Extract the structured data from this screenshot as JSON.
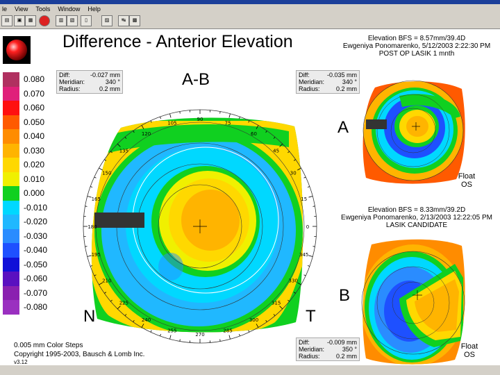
{
  "menu": {
    "items": [
      "le",
      "View",
      "Tools",
      "Window",
      "Help"
    ]
  },
  "header": {
    "title": "Difference - Anterior Elevation",
    "exam_a": [
      "Elevation BFS = 8.57mm/39.4D",
      "Ewgeniya Ponomarenko, 5/12/2003 2:22:30 PM",
      "POST OP LASIK 1 mnth"
    ],
    "exam_b": [
      "Elevation BFS = 8.33mm/39.2D",
      "Ewgeniya Ponomarenko, 2/13/2003 12:22:05 PM",
      "LASIK CANDIDATE"
    ]
  },
  "labels": {
    "ab": "A-B",
    "a": "A",
    "b": "B",
    "n": "N",
    "t": "T",
    "float1": "Float",
    "os1": "OS",
    "float2": "Float",
    "os2": "OS"
  },
  "info_left": {
    "diff_k": "Diff:",
    "diff_v": "-0.027 mm",
    "mer_k": "Meridian:",
    "mer_v": "340 °",
    "rad_k": "Radius:",
    "rad_v": "0.2 mm"
  },
  "info_right": {
    "diff_k": "Diff:",
    "diff_v": "-0.035 mm",
    "mer_k": "Meridian:",
    "mer_v": "340 °",
    "rad_k": "Radius:",
    "rad_v": "0.2 mm"
  },
  "info_bottom": {
    "diff_k": "Diff:",
    "diff_v": "-0.009 mm",
    "mer_k": "Meridian:",
    "mer_v": "350 °",
    "rad_k": "Radius:",
    "rad_v": "0.2 mm"
  },
  "legend": {
    "values": [
      "0.080",
      "0.070",
      "0.060",
      "0.050",
      "0.040",
      "0.030",
      "0.020",
      "0.010",
      "0.000",
      "-0.010",
      "-0.020",
      "-0.030",
      "-0.040",
      "-0.050",
      "-0.060",
      "-0.070",
      "-0.080"
    ],
    "colors": [
      "#b03060",
      "#e0207a",
      "#ff1010",
      "#ff5a00",
      "#ff8c00",
      "#ffb400",
      "#ffd800",
      "#f0f000",
      "#10d020",
      "#00d8ff",
      "#20b8ff",
      "#2a8cff",
      "#1e50ff",
      "#1010d8",
      "#5a10c0",
      "#8a20b0",
      "#9a30c0"
    ]
  },
  "angles": [
    "90",
    "75",
    "60",
    "45",
    "30",
    "15",
    "0",
    "345",
    "330",
    "315",
    "300",
    "285",
    "270",
    "255",
    "240",
    "225",
    "210",
    "195",
    "180",
    "165",
    "150",
    "135",
    "120",
    "105"
  ],
  "footer": {
    "steps": "0.005 mm Color Steps",
    "copyright": "Copyright 1995-2003, Bausch & Lomb Inc.",
    "version": "v3.12"
  }
}
